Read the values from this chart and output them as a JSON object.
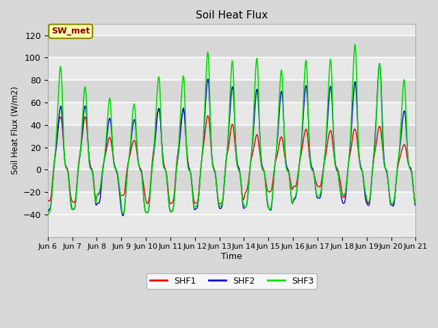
{
  "title": "Soil Heat Flux",
  "ylabel": "Soil Heat Flux (W/m2)",
  "xlabel": "Time",
  "ylim": [
    -60,
    130
  ],
  "yticks": [
    -40,
    -20,
    0,
    20,
    40,
    60,
    80,
    100,
    120
  ],
  "bg_color": "#d8d8d8",
  "plot_bg_color": "#e8e8e8",
  "grid_color": "white",
  "line_colors": {
    "SHF1": "#dd0000",
    "SHF2": "#0000cc",
    "SHF3": "#00dd00"
  },
  "annotation_text": "SW_met",
  "annotation_bg": "#ffffaa",
  "annotation_fg": "#880000",
  "annotation_border": "#888800",
  "n_days": 15,
  "xtick_labels": [
    "Jun 6",
    "Jun 7",
    "Jun 8",
    "Jun 9",
    "Jun 10",
    "Jun 11",
    "Jun 12",
    "Jun 13",
    "Jun 14",
    "Jun 15",
    "Jun 16",
    "Jun 17",
    "Jun 18",
    "Jun 19",
    "Jun 20",
    "Jun 21"
  ],
  "shf1_day_peaks": [
    50,
    48,
    30,
    28,
    57,
    55,
    50,
    42,
    32,
    31,
    38,
    37,
    39,
    40,
    24
  ],
  "shf2_day_peaks": [
    60,
    60,
    48,
    48,
    58,
    56,
    84,
    80,
    75,
    73,
    79,
    79,
    83,
    100,
    55
  ],
  "shf3_day_peaks": [
    98,
    80,
    68,
    62,
    90,
    90,
    113,
    103,
    105,
    95,
    104,
    105,
    120,
    101,
    85
  ],
  "shf1_night_vals": [
    -28,
    -30,
    -22,
    -22,
    -30,
    -30,
    -30,
    -30,
    -20,
    -20,
    -15,
    -15,
    -25,
    -30,
    -30
  ],
  "shf2_night_vals": [
    -35,
    -35,
    -30,
    -40,
    -38,
    -38,
    -34,
    -34,
    -34,
    -35,
    -26,
    -26,
    -30,
    -32,
    -32
  ],
  "shf3_night_vals": [
    -38,
    -35,
    -20,
    -40,
    -38,
    -38,
    -32,
    -32,
    -32,
    -35,
    -24,
    -24,
    -22,
    -30,
    -30
  ]
}
